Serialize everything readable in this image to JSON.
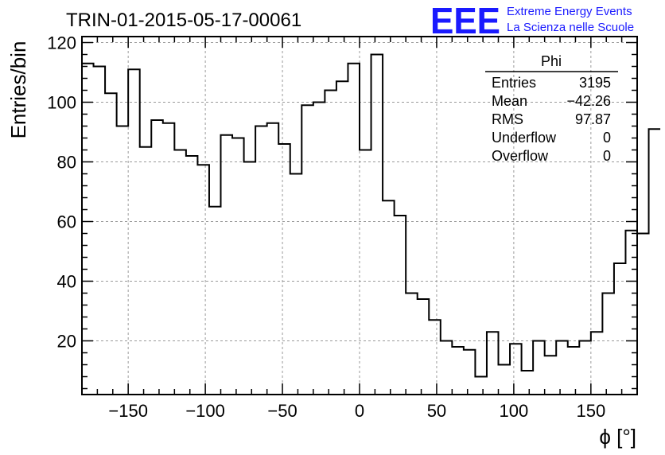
{
  "header": {
    "title": "TRIN-01-2015-05-17-00061",
    "logo_text": "EEE",
    "logo_line1": "Extreme Energy Events",
    "logo_line2": "La Scienza nelle Scuole"
  },
  "stats_box": {
    "name": "Phi",
    "rows": [
      {
        "label": "Entries",
        "value": "3195"
      },
      {
        "label": "Mean",
        "value": "−42.26"
      },
      {
        "label": "RMS",
        "value": "97.87"
      },
      {
        "label": "Underflow",
        "value": "0"
      },
      {
        "label": "Overflow",
        "value": "0"
      }
    ]
  },
  "colors": {
    "line": "#000000",
    "grid": "#9a9a9a",
    "logo": "#1a1aff"
  },
  "chart_data": {
    "type": "bar",
    "histogram": true,
    "xlabel": "ϕ [°]",
    "ylabel": "Entries/bin",
    "xlim": [
      -180,
      180
    ],
    "ylim": [
      2,
      122
    ],
    "bin_width": 7.5,
    "x_ticks": [
      -150,
      -100,
      -50,
      0,
      50,
      100,
      150
    ],
    "x_tick_labels": [
      "−150",
      "−100",
      "−50",
      "0",
      "50",
      "100",
      "150"
    ],
    "y_ticks": [
      20,
      40,
      60,
      80,
      100,
      120
    ],
    "y_tick_labels": [
      "20",
      "40",
      "60",
      "80",
      "100",
      "120"
    ],
    "grid": true,
    "values": [
      113,
      112,
      103,
      92,
      111,
      85,
      94,
      93,
      84,
      82,
      79,
      65,
      89,
      88,
      80,
      92,
      93,
      86,
      76,
      99,
      100,
      104,
      107,
      113,
      84,
      116,
      67,
      62,
      36,
      34,
      27,
      20,
      18,
      17,
      8,
      23,
      12,
      19,
      10,
      20,
      15,
      20,
      18,
      20,
      23,
      36,
      46,
      57,
      56,
      91
    ]
  }
}
